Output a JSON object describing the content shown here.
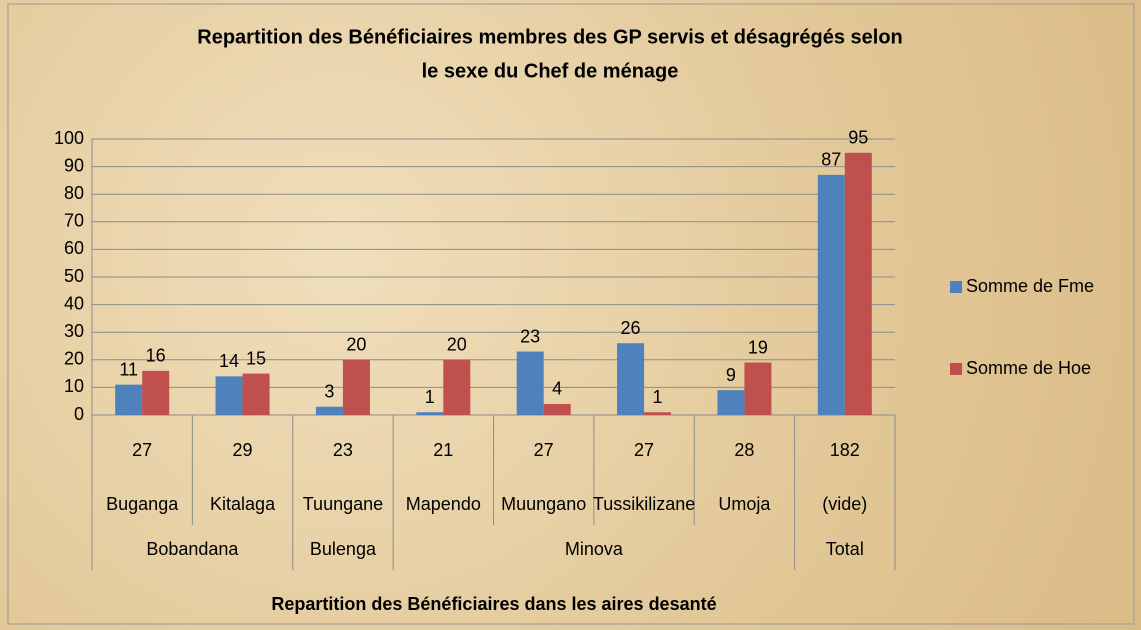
{
  "chart_data": {
    "type": "bar",
    "title": [
      "Repartition des Bénéficiaires membres des GP servis et désagrégés selon",
      "le sexe du Chef de ménage"
    ],
    "x_label": "Repartition des Bénéficiaires dans les aires desanté",
    "categories": [
      "Buganga",
      "Kitalaga",
      "Tuungane",
      "Mapendo",
      "Muungano",
      "Tussikilizane",
      "Umoja",
      "(vide)"
    ],
    "category_totals": [
      27,
      29,
      23,
      21,
      27,
      27,
      28,
      182
    ],
    "groups": [
      {
        "name": "Bobandana",
        "count": 2
      },
      {
        "name": "Bulenga",
        "count": 1
      },
      {
        "name": "Minova",
        "count": 4
      },
      {
        "name": "Total",
        "count": 1
      }
    ],
    "series": [
      {
        "name": "Somme de Fme",
        "color": "#4f81bd",
        "values": [
          11,
          14,
          3,
          1,
          23,
          26,
          9,
          87
        ]
      },
      {
        "name": "Somme de Hoe",
        "color": "#c0504d",
        "values": [
          16,
          15,
          20,
          20,
          4,
          1,
          19,
          95
        ]
      }
    ],
    "ylim": [
      0,
      100
    ],
    "yticks": [
      0,
      10,
      20,
      30,
      40,
      50,
      60,
      70,
      80,
      90,
      100
    ],
    "grid": true,
    "legend": "right"
  }
}
